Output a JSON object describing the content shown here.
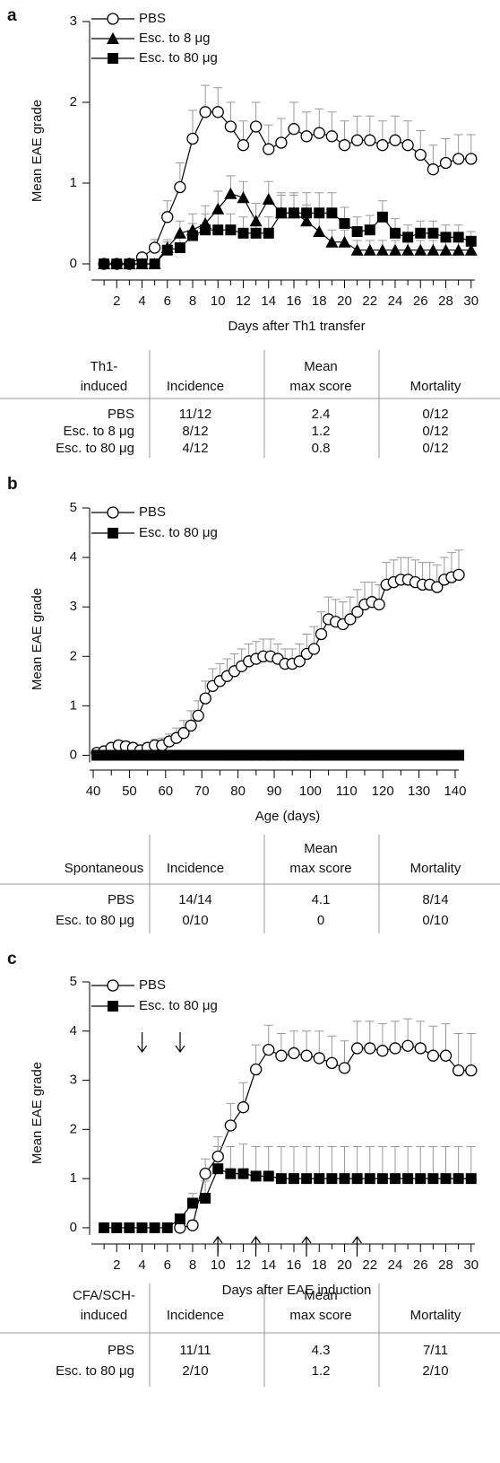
{
  "chart_data": [
    {
      "type": "line",
      "panel": "a",
      "y_label": "Mean EAE grade",
      "x_label": "Days after Th1 transfer",
      "xlim": [
        0,
        30.3
      ],
      "ylim": [
        -0.2,
        3
      ],
      "xticks": [
        2,
        4,
        6,
        8,
        10,
        12,
        14,
        16,
        18,
        20,
        22,
        24,
        26,
        28,
        30
      ],
      "minor_xticks": [
        1,
        3,
        5,
        7,
        9,
        11,
        13,
        15,
        17,
        19,
        21,
        23,
        25,
        27,
        29
      ],
      "yticks": [
        0,
        1,
        2,
        3
      ],
      "legend": "top-left",
      "x": [
        1,
        2,
        3,
        4,
        5,
        6,
        7,
        8,
        9,
        10,
        11,
        12,
        13,
        14,
        15,
        16,
        17,
        18,
        19,
        20,
        21,
        22,
        23,
        24,
        25,
        26,
        27,
        28,
        29,
        30
      ],
      "series": [
        {
          "name": "PBS",
          "color": "#000000",
          "marker": "circle",
          "values": [
            0,
            0,
            0,
            0.08,
            0.2,
            0.58,
            0.95,
            1.55,
            1.88,
            1.88,
            1.7,
            1.47,
            1.7,
            1.42,
            1.5,
            1.67,
            1.58,
            1.62,
            1.58,
            1.47,
            1.53,
            1.53,
            1.47,
            1.53,
            1.47,
            1.35,
            1.17,
            1.25,
            1.3,
            1.3
          ],
          "errors": [
            0,
            0,
            0,
            0.05,
            0.1,
            0.2,
            0.3,
            0.35,
            0.33,
            0.3,
            0.3,
            0.3,
            0.3,
            0.3,
            0.3,
            0.33,
            0.3,
            0.3,
            0.3,
            0.3,
            0.3,
            0.3,
            0.3,
            0.3,
            0.3,
            0.3,
            0.3,
            0.3,
            0.3,
            0.3
          ]
        },
        {
          "name": "Esc. to 8 μg",
          "color": "#000000",
          "marker": "triangle",
          "values": [
            0,
            0,
            0,
            0,
            0,
            0.2,
            0.38,
            0.42,
            0.5,
            0.68,
            0.87,
            0.82,
            0.53,
            0.8,
            0.63,
            0.63,
            0.53,
            0.4,
            0.27,
            0.27,
            0.17,
            0.17,
            0.17,
            0.17,
            0.17,
            0.17,
            0.17,
            0.17,
            0.17,
            0.17
          ],
          "errors": [
            0,
            0,
            0,
            0,
            0,
            0.1,
            0.15,
            0.2,
            0.22,
            0.22,
            0.22,
            0.2,
            0.22,
            0.22,
            0.22,
            0.22,
            0.2,
            0.18,
            0.15,
            0.15,
            0.12,
            0.12,
            0.12,
            0.12,
            0.12,
            0.12,
            0.12,
            0.12,
            0.12,
            0.12
          ]
        },
        {
          "name": "Esc. to 80 μg",
          "color": "#000000",
          "marker": "square",
          "values": [
            0,
            0,
            0,
            0,
            0,
            0.17,
            0.2,
            0.35,
            0.42,
            0.42,
            0.42,
            0.38,
            0.38,
            0.38,
            0.63,
            0.63,
            0.63,
            0.63,
            0.63,
            0.5,
            0.4,
            0.42,
            0.58,
            0.38,
            0.33,
            0.38,
            0.38,
            0.33,
            0.33,
            0.28
          ],
          "errors": [
            0,
            0,
            0,
            0,
            0,
            0.1,
            0.12,
            0.15,
            0.2,
            0.2,
            0.2,
            0.2,
            0.2,
            0.2,
            0.25,
            0.25,
            0.25,
            0.25,
            0.25,
            0.2,
            0.18,
            0.18,
            0.2,
            0.18,
            0.15,
            0.15,
            0.15,
            0.15,
            0.15,
            0.12
          ]
        }
      ]
    },
    {
      "type": "line",
      "panel": "b",
      "y_label": "Mean EAE grade",
      "x_label": "Age (days)",
      "xlim": [
        39,
        141
      ],
      "ylim": [
        -0.3,
        5
      ],
      "xticks": [
        40,
        50,
        60,
        70,
        80,
        90,
        100,
        110,
        120,
        130,
        140
      ],
      "minor_xticks": [
        45,
        55,
        65,
        75,
        85,
        95,
        105,
        115,
        125,
        135
      ],
      "yticks": [
        0,
        1,
        2,
        3,
        4,
        5
      ],
      "legend": "top-left",
      "x": [
        41,
        43,
        45,
        47,
        49,
        51,
        53,
        55,
        57,
        59,
        61,
        63,
        65,
        67,
        69,
        71,
        73,
        75,
        77,
        79,
        81,
        83,
        85,
        87,
        89,
        91,
        93,
        95,
        97,
        99,
        101,
        103,
        105,
        107,
        109,
        111,
        113,
        115,
        117,
        119,
        121,
        123,
        125,
        127,
        129,
        131,
        133,
        135,
        137,
        139,
        141
      ],
      "series": [
        {
          "name": "PBS",
          "color": "#000000",
          "marker": "circle",
          "values": [
            0.05,
            0.08,
            0.15,
            0.2,
            0.18,
            0.15,
            0.1,
            0.15,
            0.2,
            0.2,
            0.28,
            0.35,
            0.45,
            0.6,
            0.8,
            1.15,
            1.4,
            1.5,
            1.6,
            1.7,
            1.8,
            1.9,
            1.95,
            2.0,
            2.0,
            1.95,
            1.85,
            1.85,
            1.9,
            2.05,
            2.15,
            2.45,
            2.75,
            2.7,
            2.65,
            2.75,
            2.9,
            3.05,
            3.1,
            3.05,
            3.45,
            3.5,
            3.55,
            3.55,
            3.5,
            3.45,
            3.45,
            3.4,
            3.55,
            3.6,
            3.65
          ],
          "errors": [
            0.05,
            0.05,
            0.08,
            0.1,
            0.1,
            0.1,
            0.1,
            0.1,
            0.12,
            0.15,
            0.15,
            0.2,
            0.25,
            0.3,
            0.3,
            0.35,
            0.35,
            0.35,
            0.35,
            0.35,
            0.35,
            0.35,
            0.35,
            0.35,
            0.35,
            0.3,
            0.3,
            0.3,
            0.35,
            0.4,
            0.45,
            0.45,
            0.45,
            0.45,
            0.45,
            0.45,
            0.45,
            0.45,
            0.4,
            0.4,
            0.45,
            0.45,
            0.45,
            0.45,
            0.45,
            0.45,
            0.45,
            0.45,
            0.45,
            0.5,
            0.5
          ]
        },
        {
          "name": "Esc. to 80 μg",
          "color": "#000000",
          "marker": "square",
          "values": [
            0,
            0,
            0,
            0,
            0,
            0,
            0,
            0,
            0,
            0,
            0,
            0,
            0,
            0,
            0,
            0,
            0,
            0,
            0,
            0,
            0,
            0,
            0,
            0,
            0,
            0,
            0,
            0,
            0,
            0,
            0,
            0,
            0,
            0,
            0,
            0,
            0,
            0,
            0,
            0,
            0,
            0,
            0,
            0,
            0,
            0,
            0,
            0,
            0,
            0,
            0
          ]
        }
      ]
    },
    {
      "type": "line",
      "panel": "c",
      "y_label": "Mean EAE grade",
      "x_label": "Days after EAE induction",
      "xlim": [
        0,
        30.3
      ],
      "ylim": [
        -0.33,
        5
      ],
      "xticks": [
        2,
        4,
        6,
        8,
        10,
        12,
        14,
        16,
        18,
        20,
        22,
        24,
        26,
        28,
        30
      ],
      "minor_xticks": [
        1,
        3,
        5,
        7,
        9,
        11,
        13,
        15,
        17,
        19,
        21,
        23,
        25,
        27,
        29
      ],
      "yticks": [
        0,
        1,
        2,
        3,
        4,
        5
      ],
      "legend": "top-left",
      "x": [
        1,
        2,
        3,
        4,
        5,
        6,
        7,
        8,
        9,
        10,
        11,
        12,
        13,
        14,
        15,
        16,
        17,
        18,
        19,
        20,
        21,
        22,
        23,
        24,
        25,
        26,
        27,
        28,
        29,
        30
      ],
      "series": [
        {
          "name": "PBS",
          "color": "#000000",
          "marker": "circle",
          "values": [
            null,
            null,
            null,
            null,
            null,
            null,
            0,
            0.05,
            1.1,
            1.45,
            2.08,
            2.45,
            3.22,
            3.62,
            3.5,
            3.55,
            3.5,
            3.45,
            3.35,
            3.25,
            3.65,
            3.65,
            3.6,
            3.65,
            3.7,
            3.65,
            3.5,
            3.5,
            3.2,
            3.2
          ],
          "errors": [
            null,
            null,
            null,
            null,
            null,
            null,
            0,
            0.1,
            0.3,
            0.4,
            0.45,
            0.5,
            0.5,
            0.5,
            0.45,
            0.45,
            0.5,
            0.55,
            0.55,
            0.55,
            0.55,
            0.55,
            0.55,
            0.55,
            0.55,
            0.55,
            0.6,
            0.65,
            0.75,
            0.75
          ]
        },
        {
          "name": "Esc. to 80 μg",
          "color": "#000000",
          "marker": "square",
          "values": [
            0,
            0,
            0,
            0,
            0,
            0,
            0.18,
            0.5,
            0.6,
            1.2,
            1.1,
            1.1,
            1.05,
            1.05,
            1.0,
            1.0,
            1.0,
            1.0,
            1.0,
            1.0,
            1.0,
            1.0,
            1.0,
            1.0,
            1.0,
            1.0,
            1.0,
            1.0,
            1.0,
            1.0
          ],
          "errors": [
            0,
            0,
            0,
            0,
            0,
            0,
            0.1,
            0.2,
            0.35,
            0.45,
            0.55,
            0.6,
            0.6,
            0.6,
            0.65,
            0.65,
            0.65,
            0.65,
            0.65,
            0.65,
            0.65,
            0.65,
            0.65,
            0.65,
            0.65,
            0.65,
            0.65,
            0.65,
            0.65,
            0.65
          ]
        }
      ]
    }
  ],
  "tables": [
    {
      "header": [
        [
          "Th1-",
          "induced"
        ],
        [
          "Incidence"
        ],
        [
          "Mean",
          "max score"
        ],
        [
          "Mortality"
        ]
      ],
      "rows": [
        [
          "PBS",
          "11/12",
          "2.4",
          "0/12"
        ],
        [
          "Esc. to 8 μg",
          "8/12",
          "1.2",
          "0/12"
        ],
        [
          "Esc. to 80 μg",
          "4/12",
          "0.8",
          "0/12"
        ]
      ]
    },
    {
      "header": [
        [
          "Spontaneous"
        ],
        [
          "Incidence"
        ],
        [
          "Mean",
          "max score"
        ],
        [
          "Mortality"
        ]
      ],
      "rows": [
        [
          "PBS",
          "14/14",
          "4.1",
          "8/14"
        ],
        [
          "Esc. to 80 μg",
          "0/10",
          "0",
          "0/10"
        ]
      ]
    },
    {
      "header": [
        [
          "CFA/SCH-",
          "induced"
        ],
        [
          "Incidence"
        ],
        [
          "Mean",
          "max score"
        ],
        [
          "Mortality"
        ]
      ],
      "rows": [
        [
          "PBS",
          "11/11",
          "4.3",
          "7/11"
        ],
        [
          "Esc. to 80 μg",
          "2/10",
          "1.2",
          "2/10"
        ]
      ]
    }
  ]
}
